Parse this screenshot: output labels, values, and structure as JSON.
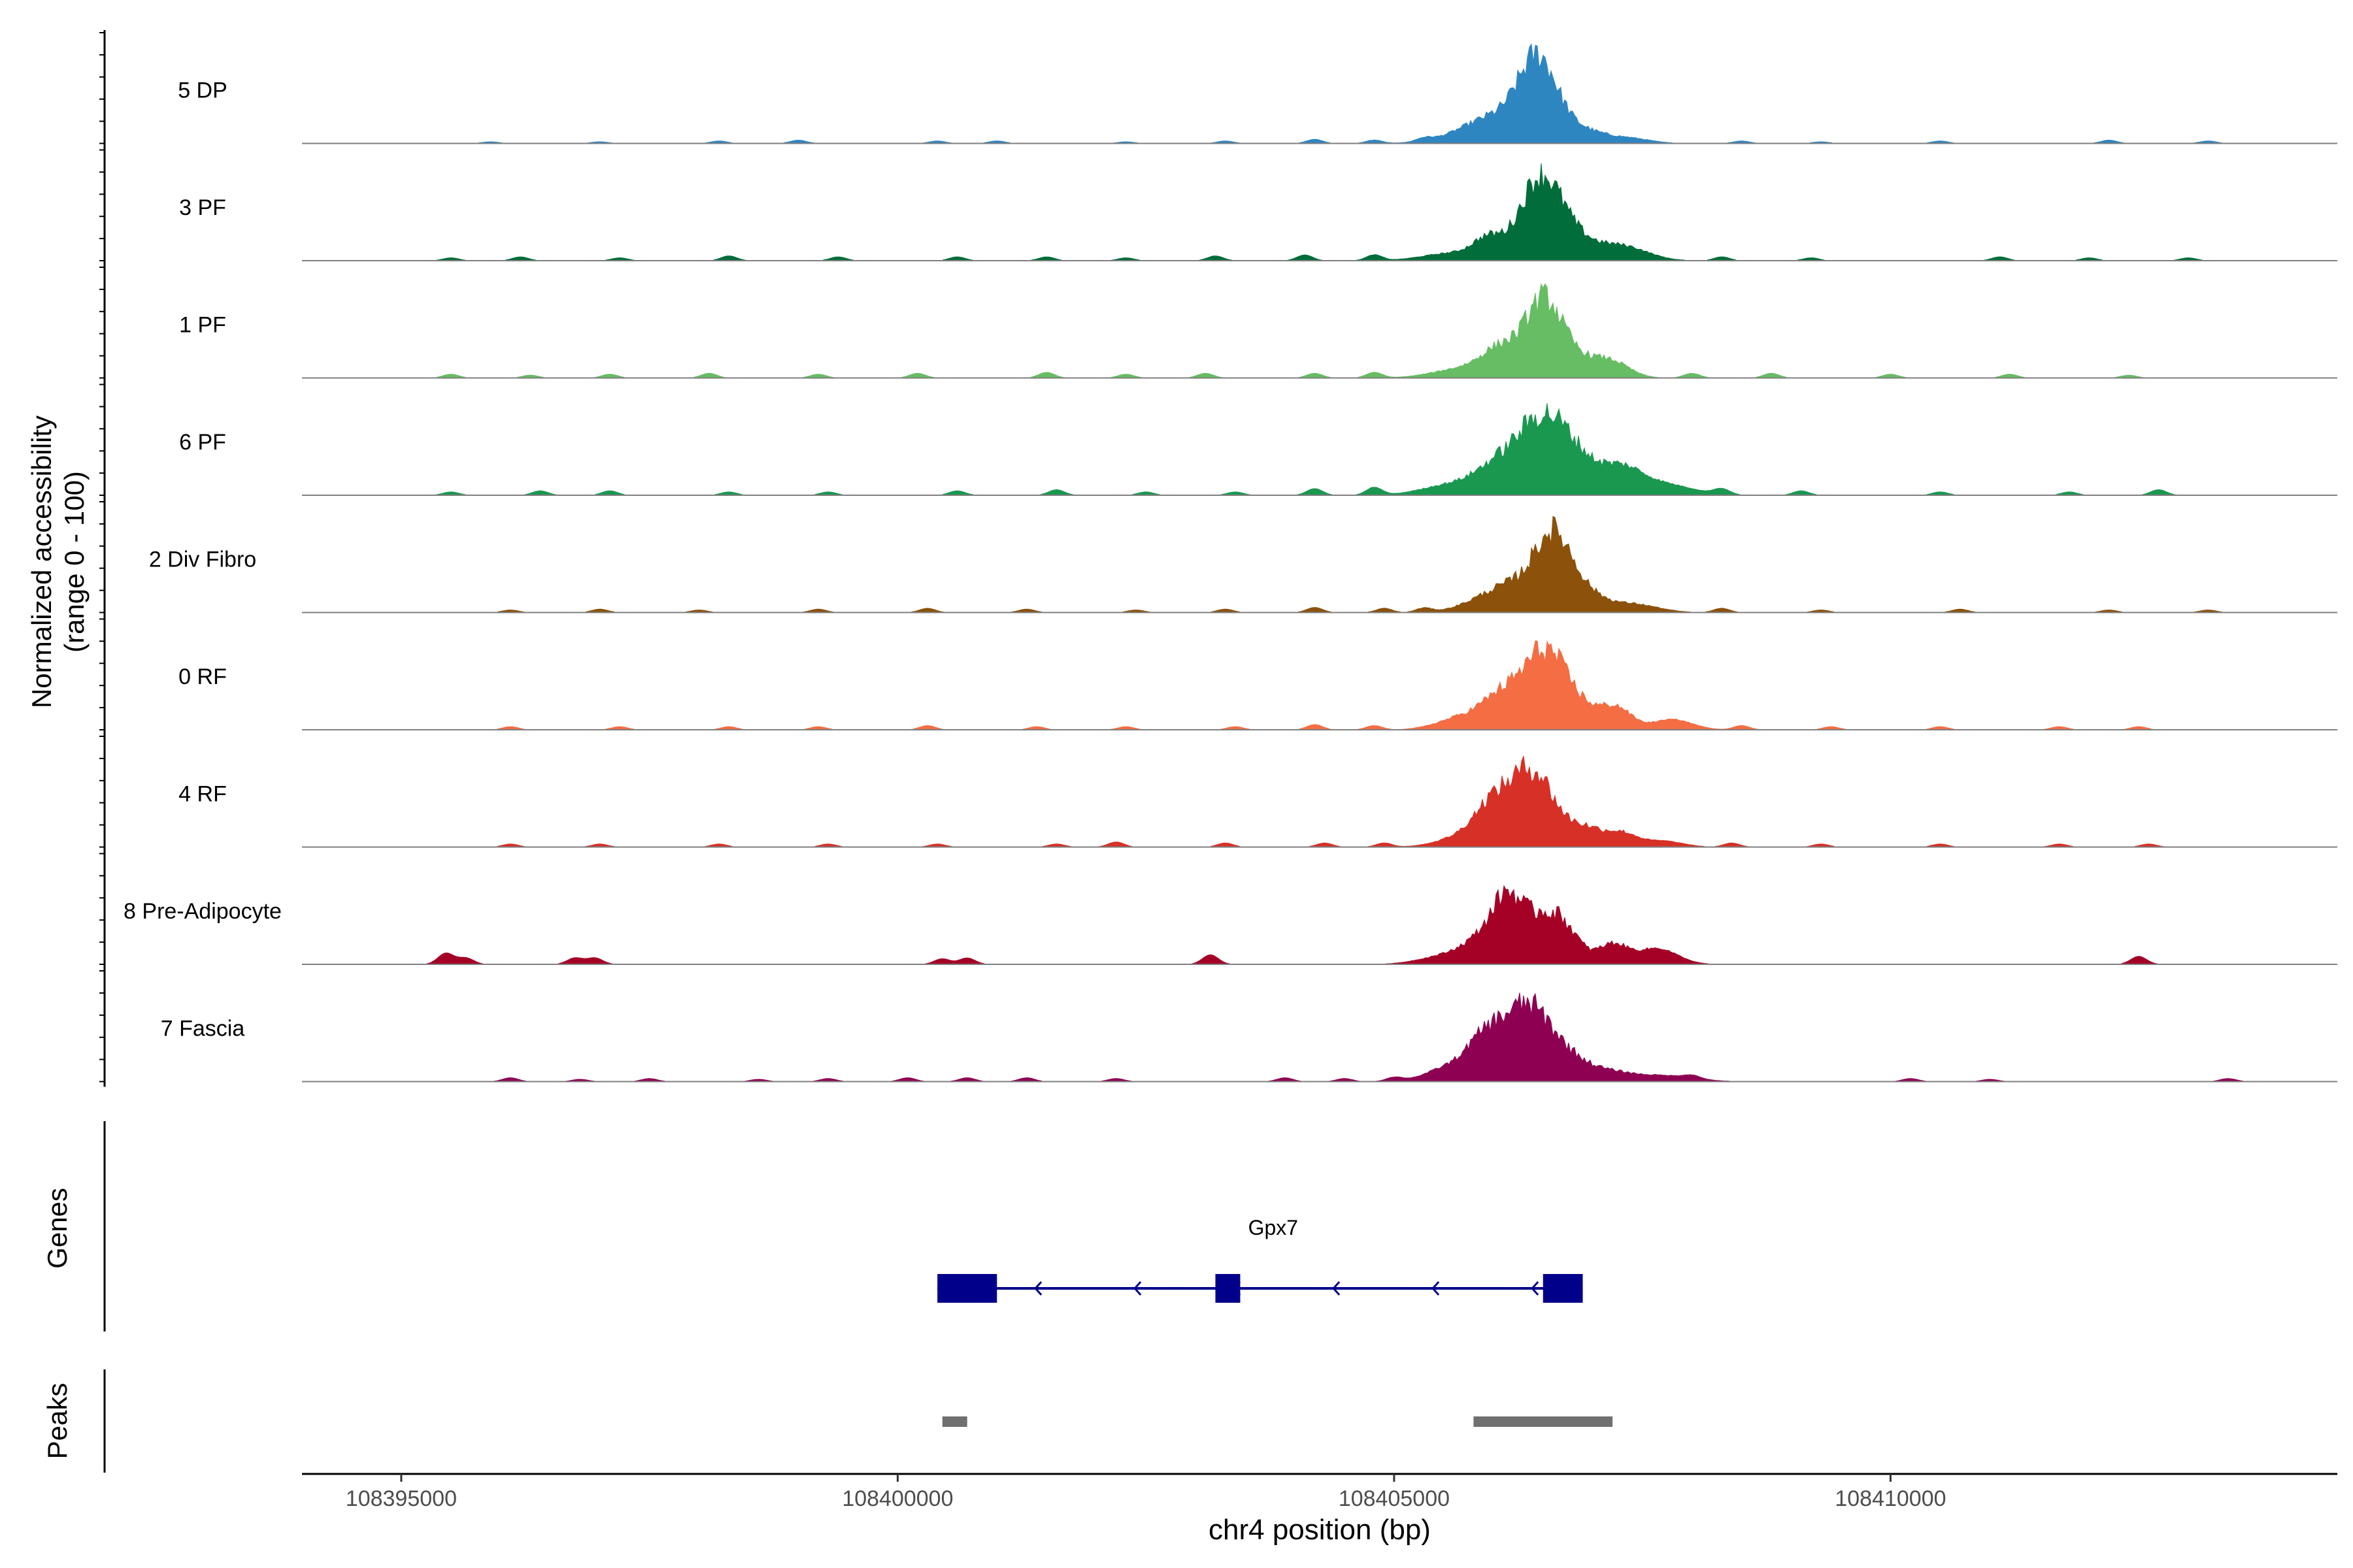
{
  "chart_data": {
    "type": "area",
    "title": "",
    "track_axis_label": [
      "Normalized accessibility",
      "(range 0 - 100)"
    ],
    "genes_label": "Genes",
    "peaks_label": "Peaks",
    "xlabel": "chr4 position (bp)",
    "xlim": [
      108394000,
      108414500
    ],
    "x_ticks": [
      108395000,
      108400000,
      108405000,
      108410000
    ],
    "x_tick_labels": [
      "108395000",
      "108400000",
      "108405000",
      "108410000"
    ],
    "ylim": [
      0,
      100
    ],
    "main_peak_center": 108406450,
    "tracks": [
      {
        "name": "5 DP",
        "color": "#2e86c1",
        "peak_height": 95,
        "components": [
          [
            108406450,
            180,
            78
          ],
          [
            108406250,
            420,
            30
          ],
          [
            108405900,
            300,
            10
          ],
          [
            108406900,
            250,
            10
          ],
          [
            108407400,
            200,
            5
          ]
        ],
        "noise": [
          [
            108395900,
            2
          ],
          [
            108397000,
            2
          ],
          [
            108398200,
            3
          ],
          [
            108399000,
            4
          ],
          [
            108400400,
            3
          ],
          [
            108401000,
            3
          ],
          [
            108402300,
            2
          ],
          [
            108403300,
            3
          ],
          [
            108404200,
            5
          ],
          [
            108404800,
            4
          ],
          [
            108405300,
            4
          ],
          [
            108408500,
            3
          ],
          [
            108409300,
            2
          ],
          [
            108410500,
            3
          ],
          [
            108412200,
            4
          ],
          [
            108413200,
            3
          ]
        ]
      },
      {
        "name": "3 PF",
        "color": "#006d3a",
        "peak_height": 93,
        "components": [
          [
            108406450,
            200,
            70
          ],
          [
            108406700,
            250,
            30
          ],
          [
            108405950,
            150,
            20
          ],
          [
            108407300,
            250,
            15
          ],
          [
            108405600,
            300,
            8
          ]
        ],
        "noise": [
          [
            108395500,
            3
          ],
          [
            108396200,
            4
          ],
          [
            108397200,
            3
          ],
          [
            108398300,
            5
          ],
          [
            108399400,
            4
          ],
          [
            108400600,
            4
          ],
          [
            108401500,
            4
          ],
          [
            108402300,
            3
          ],
          [
            108403200,
            5
          ],
          [
            108404100,
            6
          ],
          [
            108404800,
            6
          ],
          [
            108408300,
            4
          ],
          [
            108409200,
            3
          ],
          [
            108411100,
            4
          ],
          [
            108412000,
            3
          ],
          [
            108413000,
            3
          ]
        ]
      },
      {
        "name": "1 PF",
        "color": "#66bd63",
        "peak_height": 90,
        "components": [
          [
            108406500,
            170,
            68
          ],
          [
            108406100,
            200,
            30
          ],
          [
            108406750,
            250,
            25
          ],
          [
            108407200,
            180,
            15
          ],
          [
            108405700,
            300,
            10
          ]
        ],
        "noise": [
          [
            108395500,
            4
          ],
          [
            108396300,
            3
          ],
          [
            108397100,
            4
          ],
          [
            108398100,
            5
          ],
          [
            108399200,
            4
          ],
          [
            108400200,
            5
          ],
          [
            108401500,
            6
          ],
          [
            108402300,
            4
          ],
          [
            108403100,
            5
          ],
          [
            108404200,
            5
          ],
          [
            108404800,
            6
          ],
          [
            108408000,
            5
          ],
          [
            108408800,
            5
          ],
          [
            108410000,
            4
          ],
          [
            108411200,
            4
          ],
          [
            108412400,
            3
          ]
        ]
      },
      {
        "name": "6 PF",
        "color": "#1a9850",
        "peak_height": 88,
        "components": [
          [
            108406450,
            250,
            60
          ],
          [
            108406800,
            250,
            30
          ],
          [
            108407300,
            200,
            20
          ],
          [
            108406000,
            200,
            18
          ],
          [
            108407700,
            300,
            10
          ],
          [
            108405600,
            300,
            10
          ]
        ],
        "noise": [
          [
            108395500,
            3
          ],
          [
            108396400,
            4
          ],
          [
            108397100,
            4
          ],
          [
            108398300,
            3
          ],
          [
            108399300,
            3
          ],
          [
            108400600,
            4
          ],
          [
            108401600,
            5
          ],
          [
            108402500,
            3
          ],
          [
            108403400,
            3
          ],
          [
            108404200,
            6
          ],
          [
            108404800,
            7
          ],
          [
            108408300,
            5
          ],
          [
            108409100,
            4
          ],
          [
            108410500,
            3
          ],
          [
            108411800,
            3
          ],
          [
            108412700,
            5
          ]
        ]
      },
      {
        "name": "2 Div Fibro",
        "color": "#8c510a",
        "peak_height": 92,
        "components": [
          [
            108406600,
            180,
            80
          ],
          [
            108406250,
            250,
            28
          ],
          [
            108406900,
            200,
            22
          ],
          [
            108405900,
            250,
            12
          ],
          [
            108407400,
            250,
            10
          ]
        ],
        "noise": [
          [
            108396100,
            3
          ],
          [
            108397000,
            4
          ],
          [
            108398000,
            3
          ],
          [
            108399200,
            4
          ],
          [
            108400300,
            5
          ],
          [
            108401300,
            4
          ],
          [
            108402400,
            3
          ],
          [
            108403300,
            4
          ],
          [
            108404200,
            6
          ],
          [
            108404900,
            5
          ],
          [
            108405300,
            5
          ],
          [
            108408300,
            5
          ],
          [
            108409300,
            3
          ],
          [
            108410700,
            4
          ],
          [
            108412200,
            3
          ],
          [
            108413200,
            3
          ]
        ]
      },
      {
        "name": "0 RF",
        "color": "#f46d43",
        "peak_height": 85,
        "components": [
          [
            108406500,
            200,
            62
          ],
          [
            108406100,
            200,
            30
          ],
          [
            108406800,
            250,
            25
          ],
          [
            108407250,
            150,
            18
          ],
          [
            108407800,
            200,
            10
          ],
          [
            108405700,
            250,
            12
          ]
        ],
        "noise": [
          [
            108396100,
            3
          ],
          [
            108397200,
            3
          ],
          [
            108398300,
            3
          ],
          [
            108399200,
            3
          ],
          [
            108400300,
            4
          ],
          [
            108401400,
            3
          ],
          [
            108402300,
            3
          ],
          [
            108403400,
            3
          ],
          [
            108404200,
            5
          ],
          [
            108404800,
            4
          ],
          [
            108408500,
            4
          ],
          [
            108409400,
            3
          ],
          [
            108410500,
            3
          ],
          [
            108411700,
            3
          ],
          [
            108412500,
            3
          ]
        ]
      },
      {
        "name": "4 RF",
        "color": "#d73027",
        "peak_height": 87,
        "components": [
          [
            108406450,
            180,
            60
          ],
          [
            108406000,
            180,
            40
          ],
          [
            108406250,
            150,
            25
          ],
          [
            108406900,
            200,
            20
          ],
          [
            108407300,
            150,
            12
          ],
          [
            108405700,
            250,
            10
          ],
          [
            108407700,
            200,
            6
          ]
        ],
        "noise": [
          [
            108396100,
            3
          ],
          [
            108397000,
            3
          ],
          [
            108398200,
            3
          ],
          [
            108399300,
            3
          ],
          [
            108400400,
            3
          ],
          [
            108401600,
            3
          ],
          [
            108402200,
            5
          ],
          [
            108403300,
            4
          ],
          [
            108404300,
            4
          ],
          [
            108404900,
            4
          ],
          [
            108408400,
            4
          ],
          [
            108409300,
            3
          ],
          [
            108410500,
            3
          ],
          [
            108411700,
            3
          ],
          [
            108412600,
            3
          ]
        ]
      },
      {
        "name": "8 Pre-Adipocyte",
        "color": "#a50026",
        "peak_height": 75,
        "components": [
          [
            108406150,
            150,
            70
          ],
          [
            108406500,
            180,
            55
          ],
          [
            108405900,
            200,
            30
          ],
          [
            108406750,
            150,
            30
          ],
          [
            108407200,
            150,
            25
          ],
          [
            108407650,
            200,
            20
          ],
          [
            108405500,
            250,
            10
          ]
        ],
        "noise": [
          [
            108395450,
            14
          ],
          [
            108395650,
            8
          ],
          [
            108396750,
            8
          ],
          [
            108396950,
            8
          ],
          [
            108400450,
            7
          ],
          [
            108400700,
            8
          ],
          [
            108403150,
            12
          ],
          [
            108412500,
            10
          ]
        ]
      },
      {
        "name": "7 Fascia",
        "color": "#8e0152",
        "peak_height": 85,
        "components": [
          [
            108406450,
            200,
            65
          ],
          [
            108405950,
            180,
            55
          ],
          [
            108406250,
            170,
            45
          ],
          [
            108406800,
            200,
            25
          ],
          [
            108407200,
            200,
            10
          ],
          [
            108405600,
            250,
            20
          ],
          [
            108407700,
            300,
            8
          ]
        ],
        "noise": [
          [
            108396100,
            5
          ],
          [
            108396800,
            3
          ],
          [
            108397500,
            4
          ],
          [
            108398600,
            3
          ],
          [
            108399300,
            4
          ],
          [
            108400100,
            5
          ],
          [
            108400700,
            5
          ],
          [
            108401300,
            5
          ],
          [
            108402200,
            4
          ],
          [
            108403900,
            5
          ],
          [
            108404500,
            4
          ],
          [
            108405000,
            5
          ],
          [
            108408000,
            4
          ],
          [
            108410200,
            4
          ],
          [
            108411000,
            3
          ],
          [
            108413400,
            4
          ]
        ]
      }
    ],
    "genes": [
      {
        "name": "Gpx7",
        "start": 108400400,
        "end": 108406900,
        "strand": "-",
        "color": "#00008b",
        "exons": [
          [
            108400400,
            108401000
          ],
          [
            108403200,
            108403450
          ],
          [
            108406500,
            108406900
          ]
        ]
      }
    ],
    "peaks": [
      {
        "start": 108400450,
        "end": 108400700,
        "color": "#707070"
      },
      {
        "start": 108405800,
        "end": 108407200,
        "color": "#707070"
      }
    ]
  }
}
